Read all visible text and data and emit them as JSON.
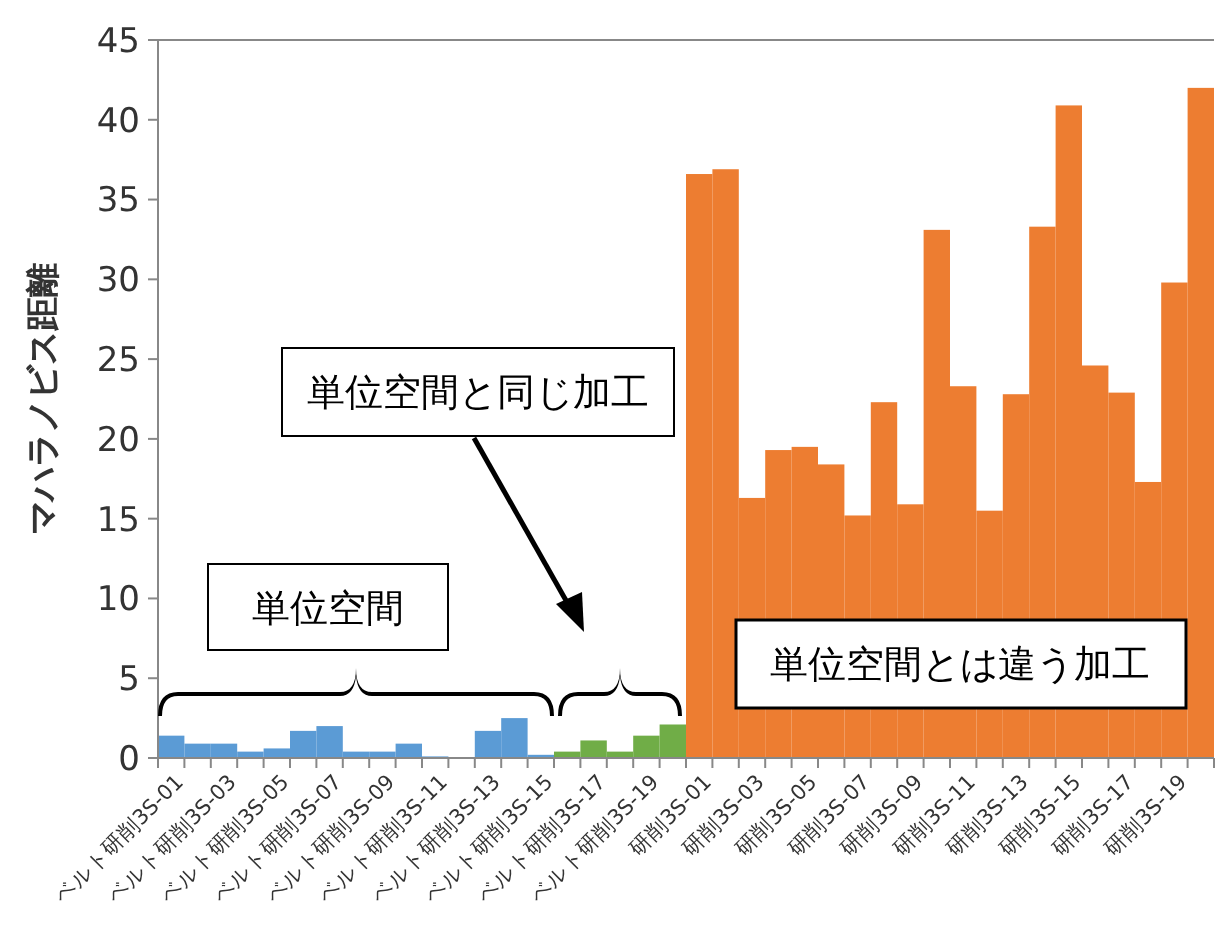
{
  "chart_data": {
    "type": "bar",
    "ylabel": "マハラノビス距離",
    "categories": [
      "ベルト研削3S-01",
      null,
      "ベルト研削3S-03",
      null,
      "ベルト研削3S-05",
      null,
      "ベルト研削3S-07",
      null,
      "ベルト研削3S-09",
      null,
      "ベルト研削3S-11",
      null,
      "ベルト研削3S-13",
      null,
      "ベルト研削3S-15",
      null,
      "ベルト研削3S-17",
      null,
      "ベルト研削3S-19",
      null,
      "研削3S-01",
      null,
      "研削3S-03",
      null,
      "研削3S-05",
      null,
      "研削3S-07",
      null,
      "研削3S-09",
      null,
      "研削3S-11",
      null,
      "研削3S-13",
      null,
      "研削3S-15",
      null,
      "研削3S-17",
      null,
      "研削3S-19",
      null
    ],
    "values": [
      1.4,
      0.9,
      0.9,
      0.4,
      0.6,
      1.7,
      2.0,
      0.4,
      0.4,
      0.9,
      0.1,
      0,
      1.7,
      2.5,
      0.2,
      0.4,
      1.1,
      0.4,
      1.4,
      2.1,
      36.6,
      36.9,
      16.3,
      19.3,
      19.5,
      18.4,
      15.2,
      22.3,
      15.9,
      33.1,
      23.3,
      15.5,
      22.8,
      33.3,
      40.9,
      24.6,
      22.9,
      17.3,
      29.8,
      42.0
    ],
    "colors": [
      "#5b9bd5",
      "#5b9bd5",
      "#5b9bd5",
      "#5b9bd5",
      "#5b9bd5",
      "#5b9bd5",
      "#5b9bd5",
      "#5b9bd5",
      "#5b9bd5",
      "#5b9bd5",
      "#5b9bd5",
      "#5b9bd5",
      "#5b9bd5",
      "#5b9bd5",
      "#5b9bd5",
      "#70ad47",
      "#70ad47",
      "#70ad47",
      "#70ad47",
      "#70ad47",
      "#ed7d31",
      "#ed7d31",
      "#ed7d31",
      "#ed7d31",
      "#ed7d31",
      "#ed7d31",
      "#ed7d31",
      "#ed7d31",
      "#ed7d31",
      "#ed7d31",
      "#ed7d31",
      "#ed7d31",
      "#ed7d31",
      "#ed7d31",
      "#ed7d31",
      "#ed7d31",
      "#ed7d31",
      "#ed7d31",
      "#ed7d31",
      "#ed7d31"
    ],
    "ylim": [
      0,
      45
    ],
    "yticks": [
      0,
      5,
      10,
      15,
      20,
      25,
      30,
      35,
      40,
      45
    ],
    "grid": false,
    "annotations": [
      "単位空間",
      "単位空間と同じ加工",
      "単位空間とは違う加工"
    ]
  }
}
